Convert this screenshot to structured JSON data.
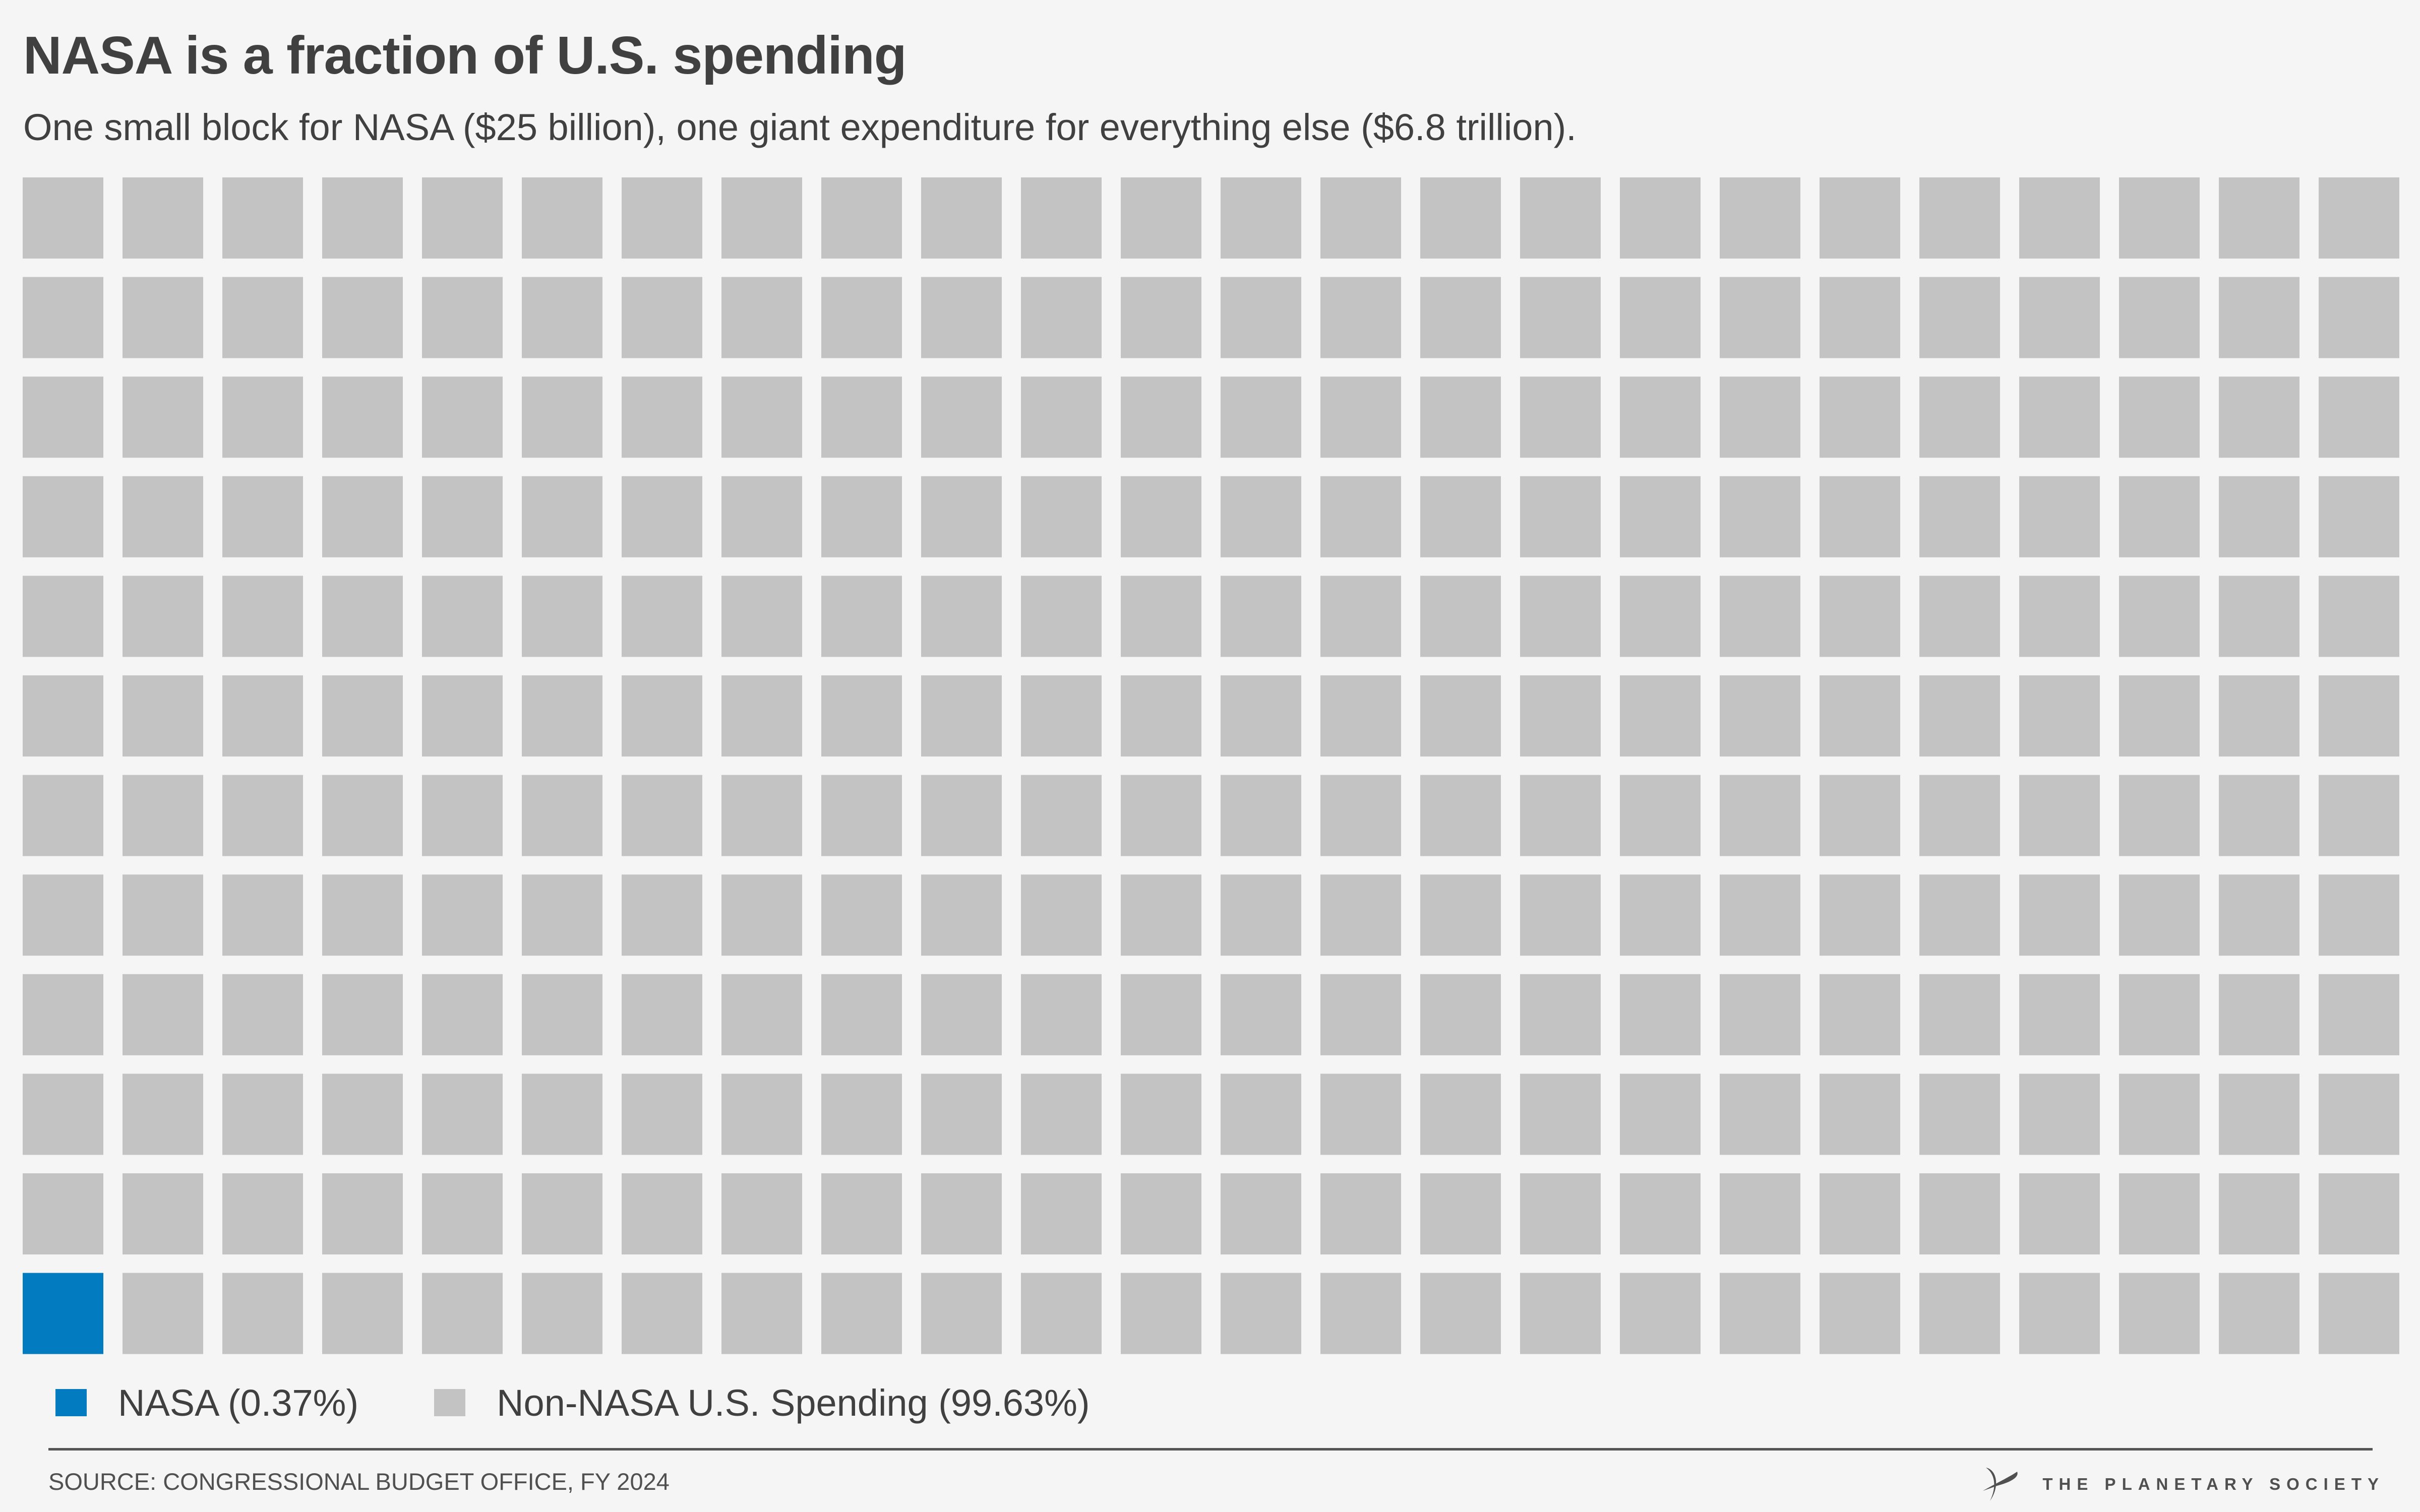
{
  "header": {
    "title": "NASA is a fraction of U.S. spending",
    "subtitle": "One small block for NASA ($25 billion), one giant expenditure for everything else ($6.8 trillion)."
  },
  "chart_data": {
    "type": "waffle",
    "title": "NASA is a fraction of U.S. spending",
    "subtitle": "One small block for NASA ($25 billion), one giant expenditure for everything else ($6.8 trillion).",
    "grid": {
      "columns": 24,
      "rows": 12,
      "fill_order": "bottom-left first"
    },
    "series": [
      {
        "name": "NASA",
        "blocks": 1,
        "percent": 0.37,
        "amount": "$25 billion",
        "color": "#037bc1"
      },
      {
        "name": "Non-NASA U.S. Spending",
        "blocks": 287,
        "percent": 99.63,
        "amount": "$6.8 trillion",
        "color": "#c3c3c3"
      }
    ],
    "legend": [
      {
        "label": "NASA (0.37%)",
        "color": "#037bc1"
      },
      {
        "label": "Non-NASA U.S. Spending (99.63%)",
        "color": "#c3c3c3"
      }
    ],
    "legend_position": "bottom-left"
  },
  "footer": {
    "source": "SOURCE: CONGRESSIONAL BUDGET OFFICE, FY 2024",
    "brand": "THE PLANETARY SOCIETY",
    "brand_icon": "planetary-society-logo-icon"
  },
  "colors": {
    "background": "#f5f5f5",
    "text": "#404040",
    "nasa": "#037bc1",
    "other": "#c3c3c3",
    "divider": "#555555"
  }
}
